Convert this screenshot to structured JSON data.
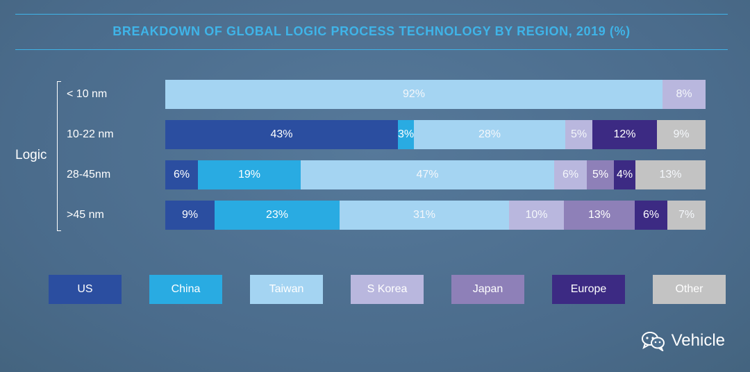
{
  "chart_data": {
    "type": "bar",
    "orientation": "horizontal",
    "stacked": true,
    "title": "BREAKDOWN OF GLOBAL LOGIC PROCESS TECHNOLOGY BY REGION, 2019 (%)",
    "group_label": "Logic",
    "categories": [
      "< 10 nm",
      "10-22 nm",
      "28-45nm",
      ">45 nm"
    ],
    "series": [
      {
        "name": "US",
        "color": "#2b4ea0",
        "values": [
          0,
          43,
          6,
          9
        ],
        "labels": [
          "",
          "43%",
          "6%",
          "9%"
        ]
      },
      {
        "name": "China",
        "color": "#29abe2",
        "values": [
          0,
          3,
          19,
          23
        ],
        "labels": [
          "",
          "3%",
          "19%",
          "23%"
        ]
      },
      {
        "name": "Taiwan",
        "color": "#a4d4f2",
        "values": [
          92,
          28,
          47,
          31
        ],
        "labels": [
          "92%",
          "28%",
          "47%",
          "31%"
        ]
      },
      {
        "name": "S Korea",
        "color": "#b9b7de",
        "values": [
          8,
          5,
          6,
          10
        ],
        "labels": [
          "8%",
          "5%",
          "6%",
          "10%"
        ]
      },
      {
        "name": "Japan",
        "color": "#8e80b8",
        "values": [
          0,
          0,
          5,
          13
        ],
        "labels": [
          "",
          "",
          "5%",
          "13%"
        ]
      },
      {
        "name": "Europe",
        "color": "#3c2a83",
        "values": [
          0,
          12,
          4,
          6
        ],
        "labels": [
          "",
          "12%",
          "4%",
          "6%"
        ]
      },
      {
        "name": "Other",
        "color": "#c3c3c3",
        "values": [
          0,
          9,
          13,
          7
        ],
        "labels": [
          "",
          "9%",
          "13%",
          "7%"
        ]
      }
    ],
    "xlim": [
      0,
      100
    ],
    "grid": false,
    "legend_position": "bottom"
  },
  "watermark": {
    "text": "Vehicle",
    "icon": "wechat-icon"
  }
}
